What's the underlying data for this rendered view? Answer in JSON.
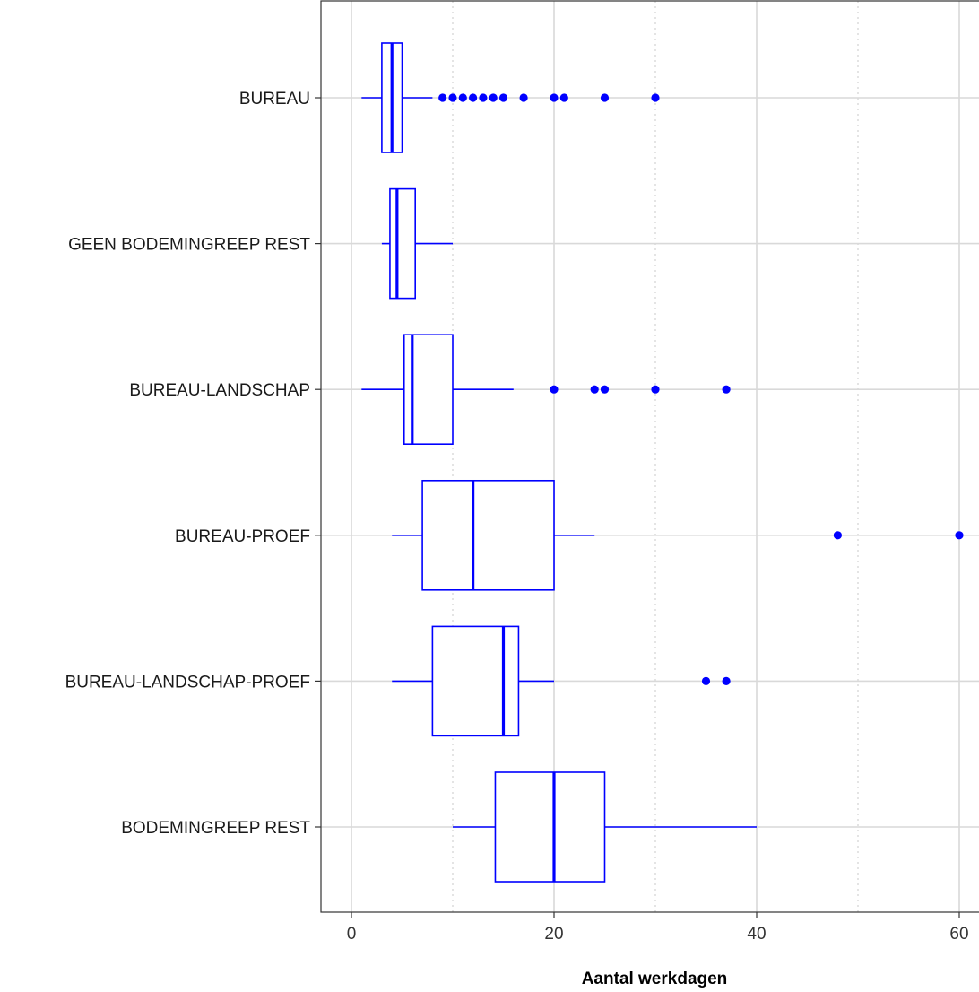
{
  "chart_data": {
    "type": "boxplot",
    "orientation": "horizontal",
    "title": "",
    "xlabel": "Aantal werkdagen",
    "ylabel": "",
    "xlim": [
      -1.5,
      62
    ],
    "x_ticks": [
      0,
      20,
      40,
      60
    ],
    "x_minor_gridlines": [
      10,
      30,
      50
    ],
    "grid": true,
    "legend": "none",
    "color": "#0000ff",
    "categories": [
      "BUREAU",
      "GEEN BODEMINGREEP REST",
      "BUREAU-LANDSCHAP",
      "BUREAU-PROEF",
      "BUREAU-LANDSCHAP-PROEF",
      "BODEMINGREEP REST"
    ],
    "boxes": [
      {
        "category": "BUREAU",
        "whisker_low": 1,
        "q1": 3,
        "median": 4,
        "q3": 5,
        "whisker_high": 8,
        "outliers": [
          9,
          10,
          11,
          12,
          13,
          14,
          15,
          17,
          20,
          21,
          25,
          30
        ]
      },
      {
        "category": "GEEN BODEMINGREEP REST",
        "whisker_low": 3,
        "q1": 3.8,
        "median": 4.5,
        "q3": 6.3,
        "whisker_high": 10,
        "outliers": []
      },
      {
        "category": "BUREAU-LANDSCHAP",
        "whisker_low": 1,
        "q1": 5.2,
        "median": 6,
        "q3": 10,
        "whisker_high": 16,
        "outliers": [
          20,
          24,
          25,
          30,
          37
        ]
      },
      {
        "category": "BUREAU-PROEF",
        "whisker_low": 4,
        "q1": 7,
        "median": 12,
        "q3": 20,
        "whisker_high": 24,
        "outliers": [
          48,
          60
        ]
      },
      {
        "category": "BUREAU-LANDSCHAP-PROEF",
        "whisker_low": 4,
        "q1": 8,
        "median": 15,
        "q3": 16.5,
        "whisker_high": 20,
        "outliers": [
          35,
          37
        ]
      },
      {
        "category": "BODEMINGREEP REST",
        "whisker_low": 10,
        "q1": 14.2,
        "median": 20,
        "q3": 25,
        "whisker_high": 40,
        "outliers": []
      }
    ]
  }
}
